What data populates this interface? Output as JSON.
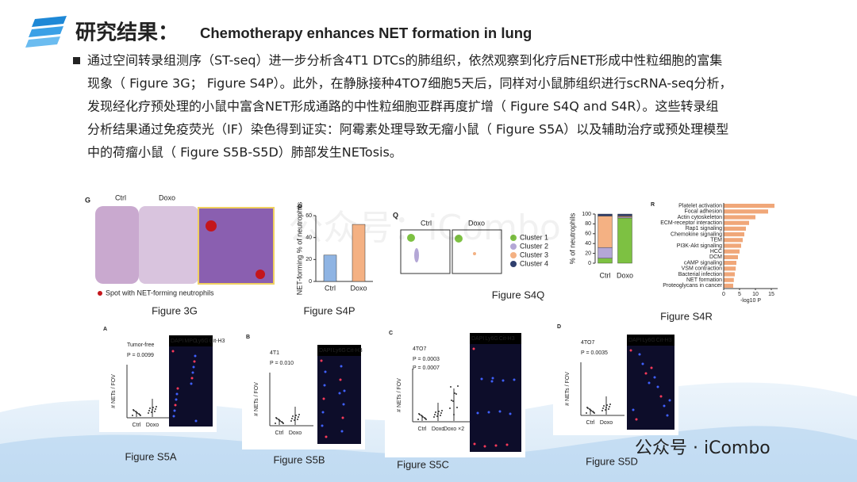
{
  "header": {
    "title": "研究结果：",
    "subtitle": "Chemotherapy enhances NET formation in lung"
  },
  "body": {
    "lines": [
      "通过空间转录组测序（ST-seq）进一步分析含4T1 DTCs的肺组织，依然观察到化疗后NET形成中性粒细胞的富集",
      "现象（ Figure 3G； Figure S4P）。此外，在静脉接种4TO7细胞5天后，同样对小鼠肺组织进行scRNA-seq分析，",
      "发现经化疗预处理的小鼠中富含NET形成通路的中性粒细胞亚群再度扩增（ Figure S4Q and S4R）。这些转录组",
      "分析结果通过免疫荧光（IF）染色得到证实：阿霉素处理导致无瘤小鼠（ Figure S5A）以及辅助治疗或预处理模型",
      "中的荷瘤小鼠（ Figure S5B-S5D）肺部发生NETosis。"
    ]
  },
  "fig3g": {
    "panel": "G",
    "labels": [
      "Ctrl",
      "Doxo"
    ],
    "legend": "Spot with NET-forming neutrophils",
    "caption": "Figure 3G"
  },
  "s4p": {
    "panel": "P",
    "ylabel": "NET-forming % of neutrophils",
    "categories": [
      "Ctrl",
      "Doxo"
    ],
    "values": [
      24,
      52
    ],
    "colors": [
      "#8fb4e3",
      "#f4b183"
    ],
    "ylim": [
      0,
      60
    ],
    "yticks": [
      0,
      20,
      40,
      60
    ],
    "caption": "Figure S4P"
  },
  "s4q": {
    "panel": "Q",
    "labels": [
      "Ctrl",
      "Doxo"
    ],
    "ylabel": "% of neutrophils",
    "categories": [
      "Ctrl",
      "Doxo"
    ],
    "ylim": [
      0,
      100
    ],
    "yticks": [
      0,
      20,
      40,
      60,
      80,
      100
    ],
    "series": [
      {
        "name": "Cluster 1",
        "color": "#7dc142",
        "values": [
          10,
          92
        ]
      },
      {
        "name": "Cluster 2",
        "color": "#b4a7d6",
        "values": [
          22,
          2
        ]
      },
      {
        "name": "Cluster 3",
        "color": "#f4b183",
        "values": [
          64,
          2
        ]
      },
      {
        "name": "Cluster 4",
        "color": "#2f3f6e",
        "values": [
          4,
          4
        ]
      }
    ],
    "caption": "Figure S4Q"
  },
  "s4r": {
    "panel": "R",
    "categories": [
      "Platelet activation",
      "Focal adhesion",
      "Actin cytoskeleton",
      "ECM-receptor interaction",
      "Rap1 signaling",
      "Chemokine signaling",
      "TEM",
      "PI3K-Akt signaling",
      "HCC",
      "DCM",
      "cAMP signaling",
      "VSM contraction",
      "Bacterial infection",
      "NET formation",
      "Proteoglycans in cancer"
    ],
    "values": [
      16,
      14,
      10,
      8,
      7,
      6.5,
      6,
      5.5,
      5,
      4.5,
      4,
      3.8,
      3.5,
      3.2,
      3
    ],
    "color": "#f0a779",
    "highlight": 13,
    "xlabel": "-log10 P",
    "xlim": [
      0,
      17
    ],
    "xticks": [
      0,
      5,
      10,
      15
    ],
    "caption": "Figure S4R"
  },
  "s5a": {
    "panel": "A",
    "title": "Tumor-free",
    "p": "P = 0.0099",
    "ylabel": "# NETs / FOV",
    "categories": [
      "Ctrl",
      "Doxo"
    ],
    "stain": [
      "DAPI",
      "MPO",
      "Ly6G",
      "Cit-H3"
    ],
    "caption": "Figure S5A"
  },
  "s5b": {
    "panel": "B",
    "title": "4T1",
    "p": "P = 0.010",
    "ylabel": "# NETs / FOV",
    "categories": [
      "Ctrl",
      "Doxo"
    ],
    "stain": [
      "DAPI",
      "Ly6G",
      "Cit-H3"
    ],
    "caption": "Figure S5B"
  },
  "s5c": {
    "panel": "C",
    "title": "4TO7",
    "p": [
      "P = 0.0003",
      "P = 0.0007"
    ],
    "ylabel": "# NETs / FOV",
    "categories": [
      "Ctrl",
      "Doxo",
      "Doxo ×2"
    ],
    "stain": [
      "DAPI",
      "Ly6G",
      "Cit-H3"
    ],
    "caption": "Figure S5C"
  },
  "s5d": {
    "panel": "D",
    "title": "4TO7",
    "p": "P = 0.0035",
    "ylabel": "# NETs / FOV",
    "categories": [
      "Ctrl",
      "Doxo"
    ],
    "stain": [
      "DAPI",
      "Ly6G",
      "Cit-H3"
    ],
    "caption": "Figure S5D"
  },
  "watermark": {
    "center": "公众号：iCombo",
    "corner": "公众号 · iCombo"
  }
}
